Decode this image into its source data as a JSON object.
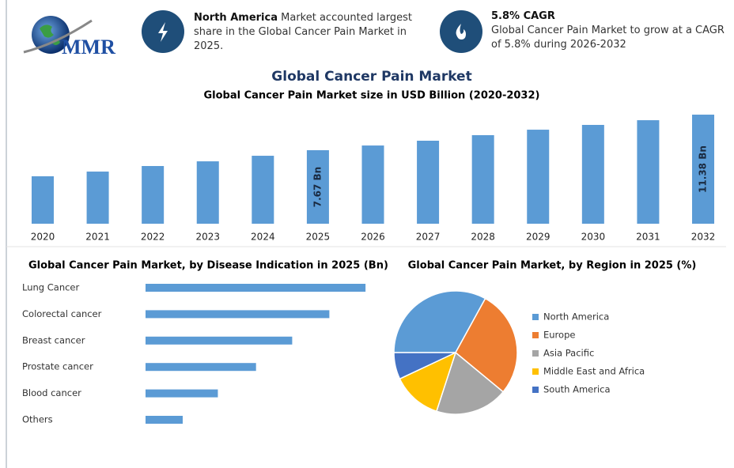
{
  "header": {
    "logo": "MMR",
    "highlights": [
      {
        "title": "North America",
        "text": "Market accounted largest share in the Global Cancer Pain Market in 2025."
      },
      {
        "title": "5.8% CAGR",
        "text": "Global Cancer Pain Market to grow at a CAGR of 5.8% during 2026-2032"
      }
    ]
  },
  "title": "Global Cancer Pain Market",
  "chart_data": [
    {
      "type": "bar",
      "title": "Global Cancer Pain Market size in USD Billion (2020-2032)",
      "categories": [
        "2020",
        "2021",
        "2022",
        "2023",
        "2024",
        "2025",
        "2026",
        "2027",
        "2028",
        "2029",
        "2030",
        "2031",
        "2032"
      ],
      "values": [
        4.95,
        5.44,
        6.02,
        6.51,
        7.09,
        7.67,
        8.16,
        8.66,
        9.24,
        9.81,
        10.31,
        10.8,
        11.38
      ],
      "value_labels": [
        null,
        null,
        null,
        null,
        null,
        "7.67 Bn",
        null,
        null,
        null,
        null,
        null,
        null,
        "11.38 Bn"
      ],
      "color": "#5b9bd5",
      "ylim": [
        0,
        12
      ]
    },
    {
      "type": "barh",
      "title": "Global Cancer Pain Market, by Disease Indication in 2025 (Bn)",
      "categories": [
        "Lung Cancer",
        "Colorectal cancer",
        "Breast cancer",
        "Prostate cancer",
        "Blood cancer",
        "Others"
      ],
      "values": [
        2.19,
        1.83,
        1.46,
        1.1,
        0.72,
        0.37
      ],
      "color": "#5b9bd5",
      "xlim": [
        0,
        2.2
      ]
    },
    {
      "type": "pie",
      "title": "Global Cancer Pain Market, by Region in 2025 (%)",
      "categories": [
        "North America",
        "Europe",
        "Asia Pacific",
        "Middle East and Africa",
        "South America"
      ],
      "values": [
        33,
        28,
        19,
        13,
        7
      ],
      "colors": [
        "#5b9bd5",
        "#ed7d31",
        "#a5a5a5",
        "#ffc000",
        "#4472c4"
      ],
      "legend": "right"
    }
  ]
}
